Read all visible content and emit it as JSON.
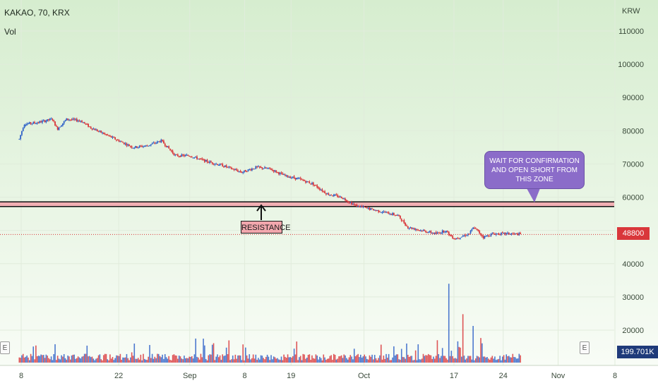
{
  "header": {
    "title": "KAKAO, 70, KRX",
    "volume_label": "Vol",
    "currency": "KRW"
  },
  "annotations": {
    "resistance_label": "RESISTANCE",
    "callout_text": "WAIT FOR CONFIRMATION AND OPEN SHORT FROM THIS ZONE",
    "resistance_zone": [
      57200,
      58600
    ],
    "earnings_marker": "E"
  },
  "price_tag": {
    "value": "48800",
    "color": "#d9373b"
  },
  "volume_tag": {
    "value": "199.701K",
    "color": "#1f3a7a"
  },
  "colors": {
    "up": "#2f62c8",
    "down": "#d9373b",
    "zone": "#f2a7ad",
    "background_top": "#d9eed2",
    "background_bottom": "#f7fcf5",
    "callout": "#8b6cc9"
  },
  "chart_data": {
    "type": "candlestick",
    "title": "KAKAO, 70, KRX",
    "ylabel": "KRW",
    "ylim": [
      11000,
      113500
    ],
    "y_ticks": [
      20000,
      30000,
      40000,
      50000,
      60000,
      70000,
      80000,
      90000,
      100000,
      110000
    ],
    "x_ticks": [
      {
        "label": "8",
        "t": 0.2
      },
      {
        "label": "22",
        "t": 10.5
      },
      {
        "label": "Sep",
        "t": 18.0
      },
      {
        "label": "8",
        "t": 23.8
      },
      {
        "label": "19",
        "t": 28.7
      },
      {
        "label": "Oct",
        "t": 36.4
      },
      {
        "label": "17",
        "t": 45.9
      },
      {
        "label": "24",
        "t": 51.1
      },
      {
        "label": "Nov",
        "t": 56.9
      },
      {
        "label": "8",
        "t": 62.9
      }
    ],
    "last_price": 48800,
    "price_path": [
      [
        0,
        77500
      ],
      [
        0.5,
        82000
      ],
      [
        2,
        82500
      ],
      [
        3.5,
        83500
      ],
      [
        4,
        80500
      ],
      [
        5,
        83500
      ],
      [
        6.5,
        83000
      ],
      [
        7.5,
        81000
      ],
      [
        9,
        79000
      ],
      [
        10.5,
        77000
      ],
      [
        12,
        75000
      ],
      [
        13.5,
        75500
      ],
      [
        15,
        77000
      ],
      [
        16.5,
        72500
      ],
      [
        18,
        72500
      ],
      [
        19.5,
        71000
      ],
      [
        21.5,
        69500
      ],
      [
        23.5,
        67500
      ],
      [
        25,
        69000
      ],
      [
        26.5,
        68500
      ],
      [
        28,
        66500
      ],
      [
        29.5,
        65500
      ],
      [
        31,
        64000
      ],
      [
        32.5,
        61000
      ],
      [
        34,
        60000
      ],
      [
        35.5,
        57500
      ],
      [
        37,
        56500
      ],
      [
        38.5,
        55500
      ],
      [
        40,
        54500
      ],
      [
        41,
        51000
      ],
      [
        42.5,
        50000
      ],
      [
        44,
        49000
      ],
      [
        45,
        50000
      ],
      [
        45.5,
        48500
      ],
      [
        46,
        47500
      ],
      [
        47.5,
        49000
      ],
      [
        48,
        51000
      ],
      [
        49,
        48000
      ],
      [
        50,
        49000
      ],
      [
        51,
        49000
      ],
      [
        52,
        49000
      ],
      [
        53,
        48800
      ]
    ],
    "volume_ylim": [
      0,
      250000
    ],
    "volume_spikes": [
      {
        "t": 45.3,
        "value": 215000
      },
      {
        "t": 46.9,
        "value": 132000
      },
      {
        "t": 47.9,
        "value": 100000
      },
      {
        "t": 44.1,
        "value": 61000
      },
      {
        "t": 40.9,
        "value": 52000
      },
      {
        "t": 48.8,
        "value": 67000
      },
      {
        "t": 46.3,
        "value": 58000
      }
    ]
  }
}
